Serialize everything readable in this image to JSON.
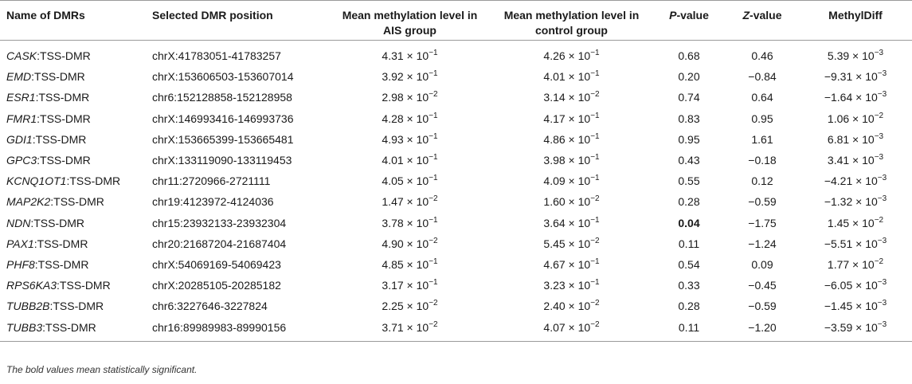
{
  "headers": {
    "name": "Name of DMRs",
    "position": "Selected DMR position",
    "ais": "Mean methylation level in AIS group",
    "control": "Mean methylation level in control group",
    "p_italic": "P",
    "p_rest": "-value",
    "z_italic": "Z",
    "z_rest": "-value",
    "diff": "MethylDiff"
  },
  "rows": [
    {
      "gene": "CASK",
      "suffix": ":TSS-DMR",
      "position": "chrX:41783051-41783257",
      "ais_m": "4.31 × 10",
      "ais_e": "−1",
      "ctrl_m": "4.26 × 10",
      "ctrl_e": "−1",
      "p": "0.68",
      "z": "0.46",
      "diff_m": "5.39 × 10",
      "diff_e": "−3",
      "bold_p": false
    },
    {
      "gene": "EMD",
      "suffix": ":TSS-DMR",
      "position": "chrX:153606503-153607014",
      "ais_m": "3.92 × 10",
      "ais_e": "−1",
      "ctrl_m": "4.01 × 10",
      "ctrl_e": "−1",
      "p": "0.20",
      "z": "−0.84",
      "diff_m": "−9.31 × 10",
      "diff_e": "−3",
      "bold_p": false
    },
    {
      "gene": "ESR1",
      "suffix": ":TSS-DMR",
      "position": "chr6:152128858-152128958",
      "ais_m": "2.98 × 10",
      "ais_e": "−2",
      "ctrl_m": "3.14 × 10",
      "ctrl_e": "−2",
      "p": "0.74",
      "z": "0.64",
      "diff_m": "−1.64 × 10",
      "diff_e": "−3",
      "bold_p": false
    },
    {
      "gene": "FMR1",
      "suffix": ":TSS-DMR",
      "position": "chrX:146993416-146993736",
      "ais_m": "4.28 × 10",
      "ais_e": "−1",
      "ctrl_m": "4.17 × 10",
      "ctrl_e": "−1",
      "p": "0.83",
      "z": "0.95",
      "diff_m": "1.06 × 10",
      "diff_e": "−2",
      "bold_p": false
    },
    {
      "gene": "GDI1",
      "suffix": ":TSS-DMR",
      "position": "chrX:153665399-153665481",
      "ais_m": "4.93 × 10",
      "ais_e": "−1",
      "ctrl_m": "4.86 × 10",
      "ctrl_e": "−1",
      "p": "0.95",
      "z": "1.61",
      "diff_m": "6.81 × 10",
      "diff_e": "−3",
      "bold_p": false
    },
    {
      "gene": "GPC3",
      "suffix": ":TSS-DMR",
      "position": "chrX:133119090-133119453",
      "ais_m": "4.01 × 10",
      "ais_e": "−1",
      "ctrl_m": "3.98 × 10",
      "ctrl_e": "−1",
      "p": "0.43",
      "z": "−0.18",
      "diff_m": "3.41 × 10",
      "diff_e": "−3",
      "bold_p": false
    },
    {
      "gene": "KCNQ1OT1",
      "suffix": ":TSS-DMR",
      "position": "chr11:2720966-2721111",
      "ais_m": "4.05 × 10",
      "ais_e": "−1",
      "ctrl_m": "4.09 × 10",
      "ctrl_e": "−1",
      "p": "0.55",
      "z": "0.12",
      "diff_m": "−4.21 × 10",
      "diff_e": "−3",
      "bold_p": false
    },
    {
      "gene": "MAP2K2",
      "suffix": ":TSS-DMR",
      "position": "chr19:4123972-4124036",
      "ais_m": "1.47 × 10",
      "ais_e": "−2",
      "ctrl_m": "1.60 × 10",
      "ctrl_e": "−2",
      "p": "0.28",
      "z": "−0.59",
      "diff_m": "−1.32 × 10",
      "diff_e": "−3",
      "bold_p": false
    },
    {
      "gene": "NDN",
      "suffix": ":TSS-DMR",
      "position": "chr15:23932133-23932304",
      "ais_m": "3.78 × 10",
      "ais_e": "−1",
      "ctrl_m": "3.64 × 10",
      "ctrl_e": "−1",
      "p": "0.04",
      "z": "−1.75",
      "diff_m": "1.45 × 10",
      "diff_e": "−2",
      "bold_p": true
    },
    {
      "gene": "PAX1",
      "suffix": ":TSS-DMR",
      "position": "chr20:21687204-21687404",
      "ais_m": "4.90 × 10",
      "ais_e": "−2",
      "ctrl_m": "5.45 × 10",
      "ctrl_e": "−2",
      "p": "0.11",
      "z": "−1.24",
      "diff_m": "−5.51 × 10",
      "diff_e": "−3",
      "bold_p": false
    },
    {
      "gene": "PHF8",
      "suffix": ":TSS-DMR",
      "position": "chrX:54069169-54069423",
      "ais_m": "4.85 × 10",
      "ais_e": "−1",
      "ctrl_m": "4.67 × 10",
      "ctrl_e": "−1",
      "p": "0.54",
      "z": "0.09",
      "diff_m": "1.77 × 10",
      "diff_e": "−2",
      "bold_p": false
    },
    {
      "gene": "RPS6KA3",
      "suffix": ":TSS-DMR",
      "position": "chrX:20285105-20285182",
      "ais_m": "3.17 × 10",
      "ais_e": "−1",
      "ctrl_m": "3.23 × 10",
      "ctrl_e": "−1",
      "p": "0.33",
      "z": "−0.45",
      "diff_m": "−6.05 × 10",
      "diff_e": "−3",
      "bold_p": false
    },
    {
      "gene": "TUBB2B",
      "suffix": ":TSS-DMR",
      "position": "chr6:3227646-3227824",
      "ais_m": "2.25 × 10",
      "ais_e": "−2",
      "ctrl_m": "2.40 × 10",
      "ctrl_e": "−2",
      "p": "0.28",
      "z": "−0.59",
      "diff_m": "−1.45 × 10",
      "diff_e": "−3",
      "bold_p": false
    },
    {
      "gene": "TUBB3",
      "suffix": ":TSS-DMR",
      "position": "chr16:89989983-89990156",
      "ais_m": "3.71 × 10",
      "ais_e": "−2",
      "ctrl_m": "4.07 × 10",
      "ctrl_e": "−2",
      "p": "0.11",
      "z": "−1.20",
      "diff_m": "−3.59 × 10",
      "diff_e": "−3",
      "bold_p": false
    }
  ],
  "footnote": "The bold values mean statistically significant."
}
